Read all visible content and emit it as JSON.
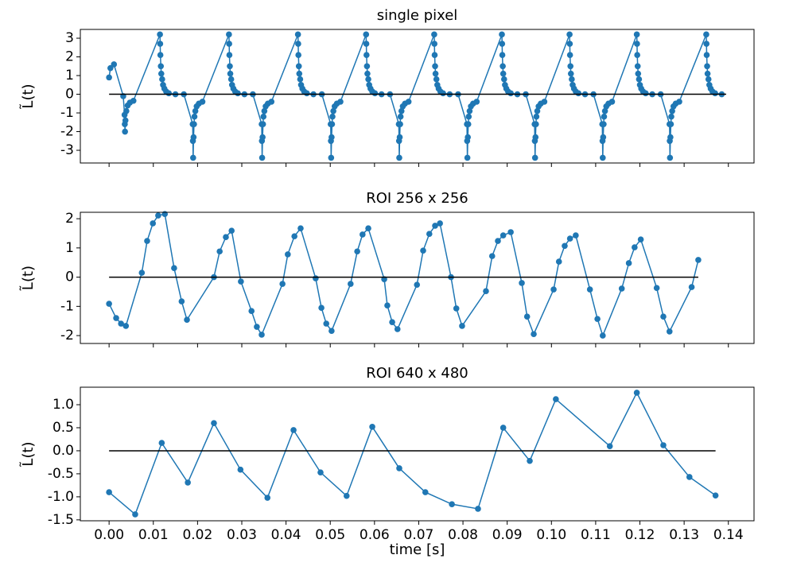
{
  "chart_data": [
    {
      "type": "line",
      "title": "single pixel",
      "ylabel": "L̃(t)",
      "xlim": [
        -0.0065,
        0.1458
      ],
      "ylim": [
        -3.68,
        3.47
      ],
      "yticks": [
        -3,
        -2,
        -1,
        0,
        1,
        2,
        3
      ],
      "series": [
        {
          "color": "#1f77b4",
          "marker": true,
          "x": [
            0,
            0.0003,
            0.0011,
            0.0032,
            0.0035,
            0.00355,
            0.0036,
            0.0037,
            0.0039,
            0.0042,
            0.0047,
            0.0055,
            0.0115,
            0.01155,
            0.0116,
            0.0117,
            0.0118,
            0.012,
            0.0122,
            0.0125,
            0.0129,
            0.0135,
            0.015,
            0.0169,
            0.0189,
            0.01895,
            0.019,
            0.0191,
            0.0192,
            0.0193,
            0.0195,
            0.0198,
            0.0203,
            0.0211,
            0.0271,
            0.02715,
            0.0272,
            0.0273,
            0.0274,
            0.0276,
            0.0278,
            0.0281,
            0.0285,
            0.0291,
            0.0306,
            0.0325,
            0.0345,
            0.03455,
            0.0346,
            0.0347,
            0.0348,
            0.0349,
            0.0351,
            0.0354,
            0.0359,
            0.0367,
            0.0427,
            0.04275,
            0.0428,
            0.0429,
            0.043,
            0.0432,
            0.0434,
            0.0437,
            0.0441,
            0.0447,
            0.0462,
            0.0481,
            0.0501,
            0.05015,
            0.0502,
            0.0503,
            0.0504,
            0.0505,
            0.0507,
            0.051,
            0.0515,
            0.0523,
            0.0581,
            0.05815,
            0.0582,
            0.0583,
            0.0584,
            0.0586,
            0.0588,
            0.0591,
            0.0595,
            0.0601,
            0.0616,
            0.0635,
            0.0655,
            0.06555,
            0.0656,
            0.0657,
            0.0658,
            0.0659,
            0.0661,
            0.0664,
            0.0669,
            0.0677,
            0.0735,
            0.07355,
            0.0736,
            0.0737,
            0.0738,
            0.074,
            0.0742,
            0.0745,
            0.0749,
            0.0755,
            0.077,
            0.0789,
            0.0809,
            0.08095,
            0.081,
            0.0811,
            0.0812,
            0.0813,
            0.0815,
            0.0818,
            0.0823,
            0.0831,
            0.0888,
            0.08885,
            0.0889,
            0.089,
            0.0891,
            0.0893,
            0.0895,
            0.0898,
            0.0902,
            0.0908,
            0.0923,
            0.0942,
            0.0962,
            0.09625,
            0.0963,
            0.0964,
            0.0965,
            0.0966,
            0.0968,
            0.0971,
            0.0976,
            0.0984,
            0.1041,
            0.10415,
            0.1042,
            0.1043,
            0.1044,
            0.1046,
            0.1048,
            0.1051,
            0.1055,
            0.1061,
            0.1076,
            0.1095,
            0.1115,
            0.11155,
            0.1116,
            0.1117,
            0.1118,
            0.1119,
            0.1121,
            0.1124,
            0.1129,
            0.1137,
            0.1193,
            0.11935,
            0.1194,
            0.1195,
            0.1196,
            0.1198,
            0.12,
            0.1203,
            0.1207,
            0.1213,
            0.1228,
            0.1247,
            0.1267,
            0.12675,
            0.1268,
            0.1269,
            0.127,
            0.1271,
            0.1273,
            0.1276,
            0.1281,
            0.1289,
            0.135,
            0.13505,
            0.1351,
            0.1352,
            0.1353,
            0.1355,
            0.1357,
            0.136,
            0.1364,
            0.137,
            0.1385
          ],
          "values": [
            0.9,
            1.4,
            1.6,
            -0.1,
            -1.1,
            -1.6,
            -2.0,
            -1.4,
            -0.9,
            -0.6,
            -0.45,
            -0.35,
            3.2,
            2.7,
            2.1,
            1.5,
            1.1,
            0.8,
            0.5,
            0.3,
            0.15,
            0.05,
            0,
            0,
            -1.6,
            -2.5,
            -3.4,
            -2.3,
            -1.6,
            -1.2,
            -0.9,
            -0.65,
            -0.5,
            -0.4,
            3.2,
            2.7,
            2.1,
            1.5,
            1.1,
            0.8,
            0.5,
            0.3,
            0.15,
            0.05,
            0,
            0,
            -1.6,
            -2.5,
            -3.4,
            -2.3,
            -1.6,
            -1.2,
            -0.9,
            -0.65,
            -0.5,
            -0.4,
            3.2,
            2.7,
            2.1,
            1.5,
            1.1,
            0.8,
            0.5,
            0.3,
            0.15,
            0.05,
            0,
            0,
            -1.6,
            -2.5,
            -3.4,
            -2.3,
            -1.6,
            -1.2,
            -0.9,
            -0.65,
            -0.5,
            -0.4,
            3.2,
            2.7,
            2.1,
            1.5,
            1.1,
            0.8,
            0.5,
            0.3,
            0.15,
            0.05,
            0,
            0,
            -1.6,
            -2.5,
            -3.4,
            -2.3,
            -1.6,
            -1.2,
            -0.9,
            -0.65,
            -0.5,
            -0.4,
            3.2,
            2.7,
            2.1,
            1.5,
            1.1,
            0.8,
            0.5,
            0.3,
            0.15,
            0.05,
            0,
            0,
            -1.6,
            -2.5,
            -3.4,
            -2.3,
            -1.6,
            -1.2,
            -0.9,
            -0.65,
            -0.5,
            -0.4,
            3.2,
            2.7,
            2.1,
            1.5,
            1.1,
            0.8,
            0.5,
            0.3,
            0.15,
            0.05,
            0,
            0,
            -1.6,
            -2.5,
            -3.4,
            -2.3,
            -1.6,
            -1.2,
            -0.9,
            -0.65,
            -0.5,
            -0.4,
            3.2,
            2.7,
            2.1,
            1.5,
            1.1,
            0.8,
            0.5,
            0.3,
            0.15,
            0.05,
            0,
            0,
            -1.6,
            -2.5,
            -3.4,
            -2.3,
            -1.6,
            -1.2,
            -0.9,
            -0.65,
            -0.5,
            -0.4,
            3.2,
            2.7,
            2.1,
            1.5,
            1.1,
            0.8,
            0.5,
            0.3,
            0.15,
            0.05,
            0,
            0,
            -1.6,
            -2.5,
            -3.4,
            -2.3,
            -1.6,
            -1.2,
            -0.9,
            -0.65,
            -0.5,
            -0.4,
            3.2,
            2.7,
            2.1,
            1.5,
            1.1,
            0.8,
            0.5,
            0.3,
            0.15,
            0.05,
            0
          ]
        },
        {
          "color": "#000000",
          "marker": false,
          "x": [
            0,
            0.1395
          ],
          "values": [
            0,
            0
          ]
        }
      ]
    },
    {
      "type": "line",
      "title": "ROI 256 x 256",
      "ylabel": "L̃(t)",
      "xlim": [
        -0.0065,
        0.1458
      ],
      "ylim": [
        -2.27,
        2.22
      ],
      "yticks": [
        -2,
        -1,
        0,
        1,
        2
      ],
      "series": [
        {
          "color": "#1f77b4",
          "marker": true,
          "x": [
            0,
            0.0016,
            0.0027,
            0.0038,
            0.0074,
            0.0086,
            0.0099,
            0.0111,
            0.0126,
            0.0147,
            0.0164,
            0.0176,
            0.0237,
            0.025,
            0.0264,
            0.0277,
            0.0298,
            0.0322,
            0.0334,
            0.0345,
            0.0392,
            0.0404,
            0.0419,
            0.0433,
            0.0467,
            0.048,
            0.0491,
            0.0503,
            0.0546,
            0.0561,
            0.0573,
            0.0586,
            0.0622,
            0.0629,
            0.064,
            0.0652,
            0.0696,
            0.071,
            0.0724,
            0.0737,
            0.0748,
            0.0773,
            0.0785,
            0.0798,
            0.0852,
            0.0866,
            0.0879,
            0.0891,
            0.0908,
            0.0933,
            0.0945,
            0.096,
            0.1005,
            0.1017,
            0.103,
            0.1042,
            0.1055,
            0.1087,
            0.1104,
            0.1116,
            0.1159,
            0.1175,
            0.1188,
            0.1202,
            0.1238,
            0.1253,
            0.1267,
            0.1317,
            0.1332
          ],
          "values": [
            -0.91,
            -1.4,
            -1.59,
            -1.67,
            0.15,
            1.24,
            1.84,
            2.11,
            2.16,
            0.31,
            -0.83,
            -1.46,
            0.0,
            0.88,
            1.37,
            1.59,
            -0.15,
            -1.16,
            -1.7,
            -1.97,
            -0.23,
            0.78,
            1.4,
            1.67,
            -0.04,
            -1.05,
            -1.59,
            -1.84,
            -0.23,
            0.88,
            1.46,
            1.67,
            -0.07,
            -0.97,
            -1.54,
            -1.78,
            -0.26,
            0.91,
            1.48,
            1.76,
            1.84,
            0.0,
            -1.07,
            -1.67,
            -0.48,
            0.72,
            1.24,
            1.43,
            1.54,
            -0.2,
            -1.35,
            -1.95,
            -0.42,
            0.53,
            1.07,
            1.32,
            1.43,
            -0.42,
            -1.43,
            -2.0,
            -0.39,
            0.48,
            1.02,
            1.29,
            -0.37,
            -1.35,
            -1.86,
            -0.34,
            0.59
          ]
        },
        {
          "color": "#000000",
          "marker": false,
          "x": [
            0,
            0.1332
          ],
          "values": [
            0,
            0
          ]
        }
      ]
    },
    {
      "type": "line",
      "title": "ROI 640 x 480",
      "ylabel": "L̃(t)",
      "xlabel": "time [s]",
      "xlim": [
        -0.0065,
        0.1458
      ],
      "ylim": [
        -1.52,
        1.38
      ],
      "yticks": [
        {
          "value": -1.5,
          "label": "-1.5"
        },
        {
          "value": -1,
          "label": "-1.0"
        },
        {
          "value": -0.5,
          "label": "-0.5"
        },
        {
          "value": 0,
          "label": "0.0"
        },
        {
          "value": 0.5,
          "label": "0.5"
        },
        {
          "value": 1,
          "label": "1.0"
        }
      ],
      "xticks": [
        {
          "value": 0,
          "label": "0.00"
        },
        {
          "value": 0.01,
          "label": "0.01"
        },
        {
          "value": 0.02,
          "label": "0.02"
        },
        {
          "value": 0.03,
          "label": "0.03"
        },
        {
          "value": 0.04,
          "label": "0.04"
        },
        {
          "value": 0.05,
          "label": "0.05"
        },
        {
          "value": 0.06,
          "label": "0.06"
        },
        {
          "value": 0.07,
          "label": "0.07"
        },
        {
          "value": 0.08,
          "label": "0.08"
        },
        {
          "value": 0.09,
          "label": "0.09"
        },
        {
          "value": 0.1,
          "label": "0.10"
        },
        {
          "value": 0.11,
          "label": "0.11"
        },
        {
          "value": 0.12,
          "label": "0.12"
        },
        {
          "value": 0.13,
          "label": "0.13"
        },
        {
          "value": 0.14,
          "label": "0.14"
        }
      ],
      "series": [
        {
          "color": "#1f77b4",
          "marker": true,
          "x": [
            0,
            0.0059,
            0.0119,
            0.0178,
            0.0237,
            0.0297,
            0.0358,
            0.0417,
            0.0478,
            0.0537,
            0.0595,
            0.0656,
            0.0715,
            0.0775,
            0.0834,
            0.0891,
            0.0951,
            0.101,
            0.1132,
            0.1193,
            0.1253,
            0.1312,
            0.1371
          ],
          "values": [
            -0.9,
            -1.38,
            0.17,
            -0.69,
            0.6,
            -0.41,
            -1.02,
            0.45,
            -0.47,
            -0.98,
            0.52,
            -0.38,
            -0.9,
            -1.16,
            -1.26,
            0.5,
            -0.22,
            1.12,
            0.1,
            1.26,
            0.12,
            -0.57,
            -0.97
          ]
        },
        {
          "color": "#000000",
          "marker": false,
          "x": [
            0,
            0.1371
          ],
          "values": [
            0,
            0
          ]
        }
      ]
    }
  ]
}
